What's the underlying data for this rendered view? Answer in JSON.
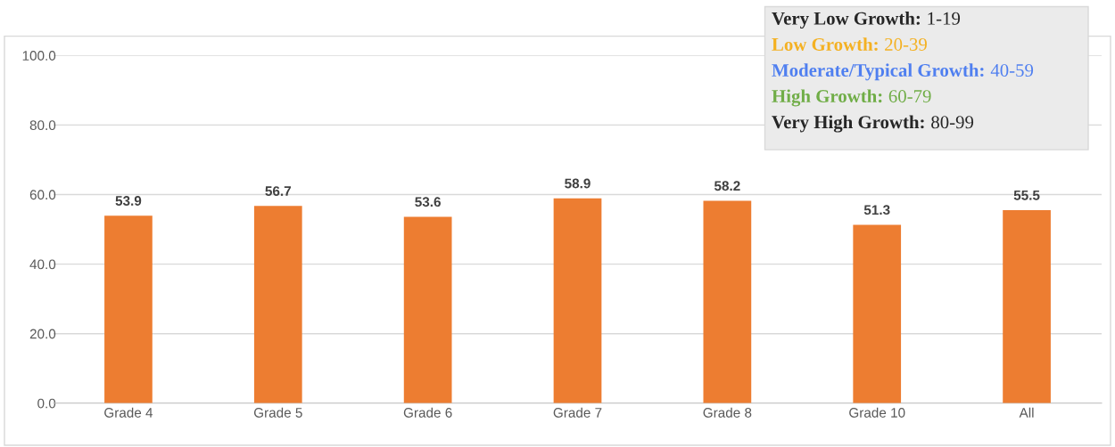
{
  "chart_data": {
    "type": "bar",
    "categories": [
      "Grade 4",
      "Grade 5",
      "Grade 6",
      "Grade 7",
      "Grade 8",
      "Grade 10",
      "All"
    ],
    "values": [
      53.9,
      56.7,
      53.6,
      58.9,
      58.2,
      51.3,
      55.5
    ],
    "color": "#ed7d31",
    "ylim": [
      0,
      100
    ],
    "yticks": [
      {
        "value": 0,
        "label": "0.0"
      },
      {
        "value": 20,
        "label": "20.0"
      },
      {
        "value": 40,
        "label": "40.0"
      },
      {
        "value": 60,
        "label": "60.0"
      },
      {
        "value": 80,
        "label": "80.0"
      },
      {
        "value": 100,
        "label": "100.0"
      }
    ],
    "grid": "y",
    "data_labels": true,
    "annotations": [
      "Very Low Growth: 1-19",
      "Low Growth: 20-39",
      "Moderate/Typical Growth: 40-59",
      "High Growth: 60-79",
      "Very High Growth: 80-99"
    ]
  }
}
